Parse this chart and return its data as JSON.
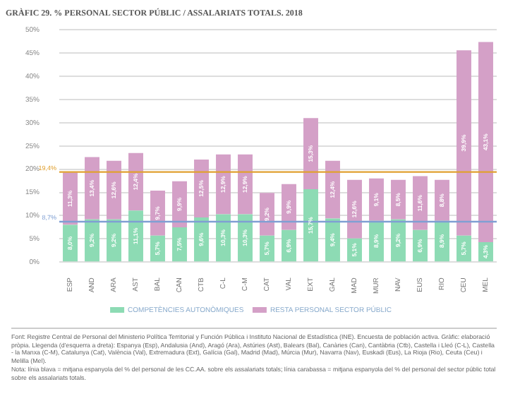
{
  "chart_data": {
    "type": "bar",
    "title": "GRÀFIC 29. % PERSONAL SECTOR PÚBLIC / ASSALARIATS TOTALS. 2018",
    "categories": [
      "ESP",
      "AND",
      "ARA",
      "AST",
      "BAL",
      "CAN",
      "CTB",
      "C-L",
      "C-M",
      "CAT",
      "VAL",
      "EXT",
      "GAL",
      "MAD",
      "MUR",
      "NAV",
      "EUS",
      "RIO",
      "CEU",
      "MEL"
    ],
    "series": [
      {
        "name": "COMPETÈNCIES AUTONÒMIQUES",
        "color": "#8ddbb4",
        "values": [
          8.0,
          9.2,
          9.2,
          11.1,
          5.7,
          7.5,
          9.6,
          10.3,
          10.3,
          5.7,
          6.9,
          15.7,
          9.4,
          5.1,
          8.9,
          9.2,
          6.9,
          8.9,
          5.7,
          4.3
        ],
        "value_labels": [
          "8,0%",
          "9,2%",
          "9,2%",
          "11,1%",
          "5,7%",
          "7,5%",
          "9,6%",
          "10,3%",
          "10,3%",
          "5,7%",
          "6,9%",
          "15,7%",
          "9,4%",
          "5,1%",
          "8,9%",
          "9,2%",
          "6,9%",
          "8,9%",
          "5,7%",
          "4,3%"
        ]
      },
      {
        "name": "RESTA PERSONAL SECTOR PÚBLIC",
        "color": "#d4a0c7",
        "values": [
          11.3,
          13.4,
          12.6,
          12.4,
          9.7,
          9.9,
          12.5,
          12.9,
          12.9,
          9.2,
          9.9,
          15.3,
          12.4,
          12.6,
          9.1,
          8.5,
          11.6,
          8.8,
          39.9,
          43.1
        ],
        "value_labels": [
          "11,3%",
          "13,4%",
          "12,6%",
          "12,4%",
          "9,7%",
          "9,9%",
          "12,5%",
          "12,9%",
          "12,9%",
          "9,2%",
          "9,9%",
          "15,3%",
          "12,4%",
          "12,6%",
          "9,1%",
          "8,5%",
          "11,6%",
          "8,8%",
          "39,9%",
          "43,1%"
        ]
      }
    ],
    "stacked": true,
    "ylim": [
      0,
      50
    ],
    "yticks": [
      {
        "value": 0,
        "label": "0%"
      },
      {
        "value": 5,
        "label": "5%"
      },
      {
        "value": 10,
        "label": "10%"
      },
      {
        "value": 15,
        "label": "15%"
      },
      {
        "value": 20,
        "label": "20%"
      },
      {
        "value": 25,
        "label": "25%"
      },
      {
        "value": 30,
        "label": "30%"
      },
      {
        "value": 35,
        "label": "35%"
      },
      {
        "value": 40,
        "label": "40%"
      },
      {
        "value": 45,
        "label": "45%"
      },
      {
        "value": 50,
        "label": "50%"
      }
    ],
    "grid": "y",
    "legend": "bottom",
    "ref_lines": [
      {
        "axis": "y",
        "value": 19.4,
        "label": "19,4%",
        "color": "#e0a030"
      },
      {
        "axis": "y",
        "value": 8.7,
        "label": "8,7%",
        "color": "#7f9fd3"
      }
    ],
    "annotations": [
      "Font: Registre Central de Personal del Ministerio Política Territorial y Función Pública i Instituto Nacional de Estadística (INE). Encuesta de población activa. Gràfic: elaboració pròpia. Llegenda (d'esquerra a dreta): Espanya (Esp), Andalusia (And), Aragó (Ara), Astúries (Ast), Balears (Bal), Canàries (Can), Cantàbria (Ctb), Castella i Lleó (C-L), Castella - la Manxa (C-M), Catalunya (Cat), València (Val), Extremadura (Ext), Galícia (Gal), Madrid (Mad), Múrcia (Mur), Navarra (Nav), Euskadi (Eus), La Rioja (Rio), Ceuta (Ceu) i Melilla (Mel).",
      "Nota: línia blava = mitjana espanyola del % del personal de les CC.AA. sobre els assalariats totals; línia carabassa = mitjana espanyola del % del personal del sector públic total sobre els assalariats totals."
    ]
  }
}
